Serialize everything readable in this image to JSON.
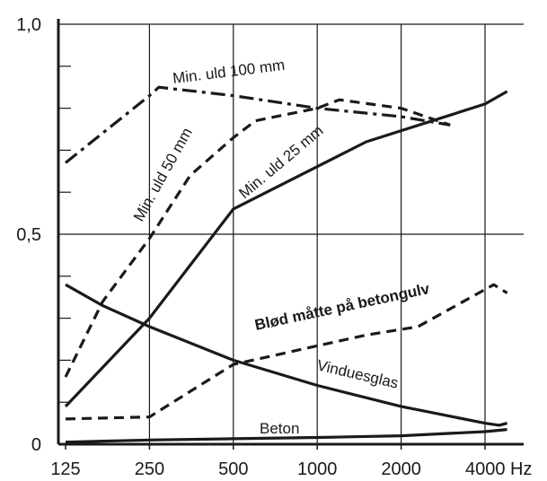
{
  "chart_data": {
    "type": "line",
    "title": "",
    "xlabel": "",
    "ylabel": "",
    "x_scale": "log2",
    "x_ticks": [
      125,
      250,
      500,
      1000,
      2000,
      4000
    ],
    "x_tick_labels": [
      "125",
      "250",
      "500",
      "1000",
      "2000",
      "4000 Hz"
    ],
    "y_ticks": [
      0,
      0.5,
      1.0
    ],
    "y_tick_labels": [
      "0",
      "0,5",
      "1,0"
    ],
    "ylim": [
      0,
      1.0
    ],
    "grid": true,
    "legend": "none",
    "series": [
      {
        "name": "Min. uld 100 mm",
        "style": "dashdot",
        "x": [
          125,
          250,
          270,
          500,
          1000,
          2000,
          3000
        ],
        "y": [
          0.67,
          0.83,
          0.85,
          0.83,
          0.8,
          0.78,
          0.76
        ]
      },
      {
        "name": "Min. uld 50 mm",
        "style": "dashed",
        "x": [
          125,
          170,
          250,
          350,
          500,
          600,
          1000,
          1200,
          2000,
          3000
        ],
        "y": [
          0.16,
          0.34,
          0.49,
          0.64,
          0.73,
          0.77,
          0.8,
          0.82,
          0.8,
          0.76
        ]
      },
      {
        "name": "Min. uld 25 mm",
        "style": "solid",
        "x": [
          125,
          250,
          500,
          1500,
          4000,
          4800
        ],
        "y": [
          0.09,
          0.3,
          0.56,
          0.72,
          0.81,
          0.84
        ]
      },
      {
        "name": "Blød måtte på betongulv",
        "style": "dashed",
        "x": [
          125,
          250,
          500,
          1500,
          2300,
          4300,
          4800
        ],
        "y": [
          0.06,
          0.065,
          0.19,
          0.26,
          0.28,
          0.38,
          0.36
        ]
      },
      {
        "name": "Vinduesglas",
        "style": "solid",
        "x": [
          125,
          170,
          250,
          500,
          1000,
          2000,
          4000,
          4500,
          4800
        ],
        "y": [
          0.38,
          0.33,
          0.28,
          0.2,
          0.14,
          0.09,
          0.05,
          0.045,
          0.05
        ]
      },
      {
        "name": "Beton",
        "style": "solid",
        "x": [
          125,
          250,
          500,
          1000,
          2000,
          4000,
          4800
        ],
        "y": [
          0.005,
          0.01,
          0.013,
          0.016,
          0.02,
          0.03,
          0.035
        ]
      }
    ],
    "annotations": [
      {
        "text": "Min. uld 100 mm"
      },
      {
        "text": "Min. uld 50 mm"
      },
      {
        "text": "Min. uld 25 mm"
      },
      {
        "text": "Blød måtte på betongulv"
      },
      {
        "text": "Vinduesglas"
      },
      {
        "text": "Beton"
      }
    ]
  }
}
